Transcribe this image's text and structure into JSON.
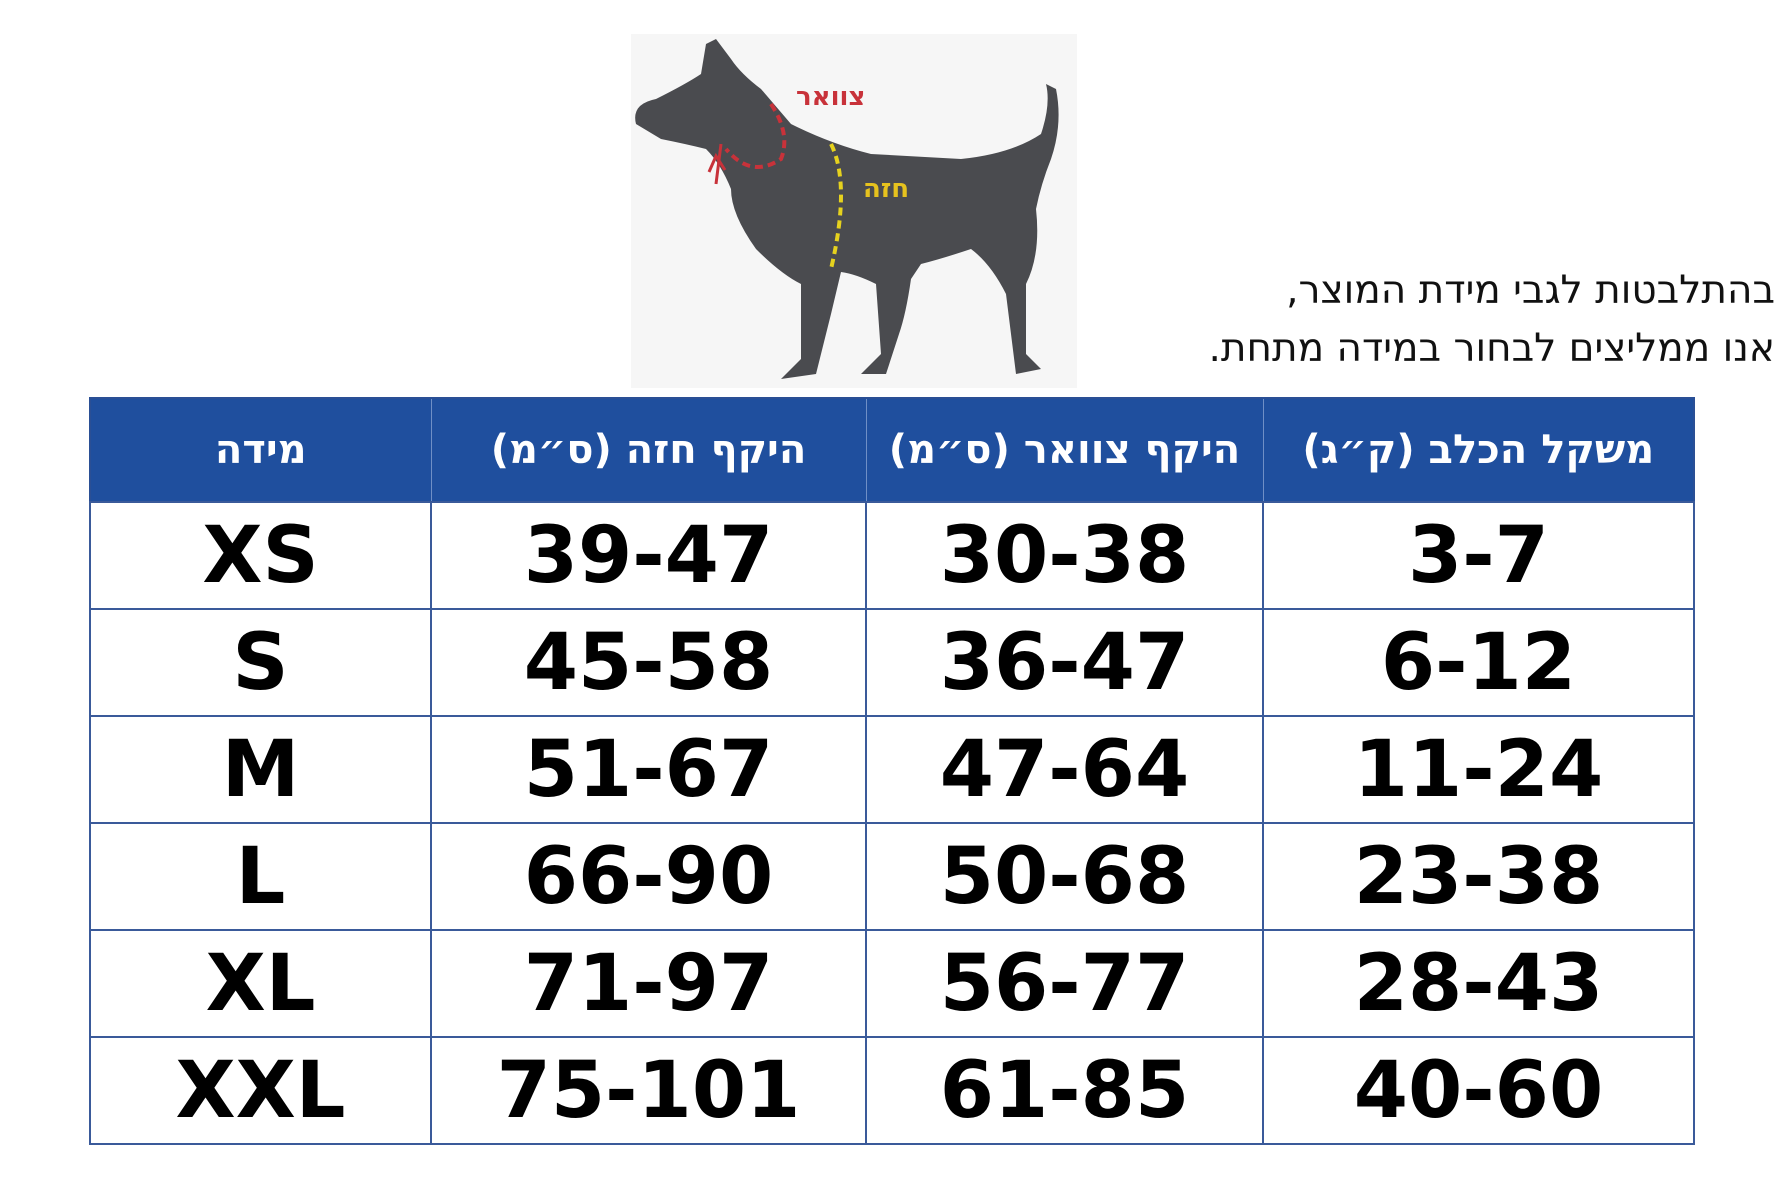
{
  "illustration": {
    "neck_label": "צוואר",
    "chest_label": "חזה",
    "neck_color": "#c8323a",
    "chest_color": "#e6d21e",
    "dog_color": "#4a4b4f"
  },
  "note": {
    "line1": "בהתלבטות לגבי מידת המוצר,",
    "line2": "אנו ממליצים לבחור במידה מתחת."
  },
  "table": {
    "header_color": "#1f4f9e",
    "headers": [
      "משקל הכלב (ק״ג)",
      "היקף צוואר (ס״מ)",
      "היקף חזה (ס״מ)",
      "מידה"
    ],
    "rows": [
      [
        "3-7",
        "30-38",
        "39-47",
        "XS"
      ],
      [
        "6-12",
        "36-47",
        "45-58",
        "S"
      ],
      [
        "11-24",
        "47-64",
        "51-67",
        "M"
      ],
      [
        "23-38",
        "50-68",
        "66-90",
        "L"
      ],
      [
        "28-43",
        "56-77",
        "71-97",
        "XL"
      ],
      [
        "40-60",
        "61-85",
        "75-101",
        "XXL"
      ]
    ]
  }
}
